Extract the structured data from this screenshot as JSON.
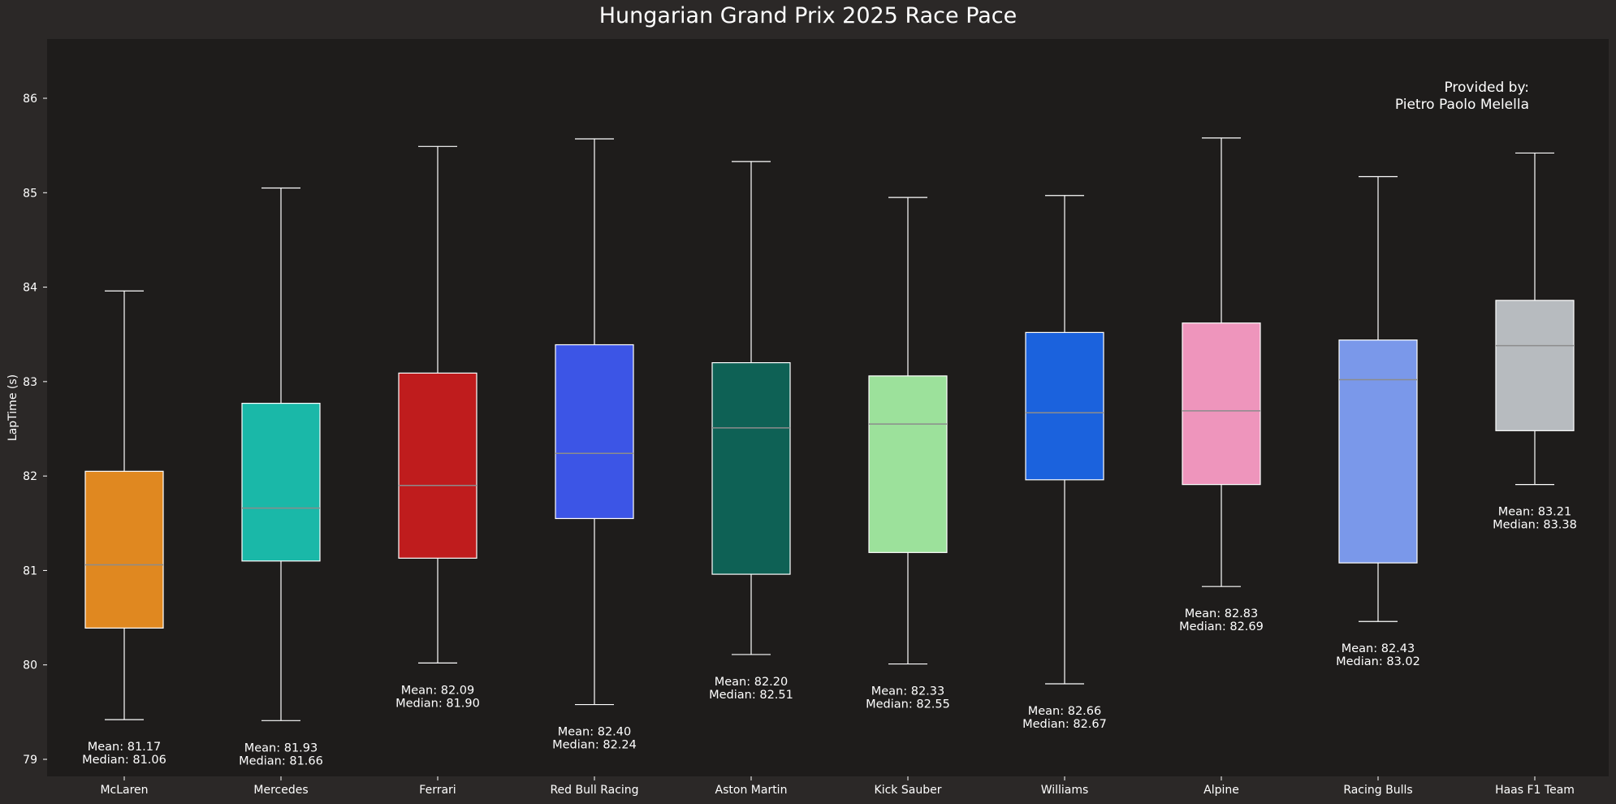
{
  "chart_data": {
    "type": "box",
    "title": "Hungarian Grand Prix 2025 Race Pace",
    "ylabel": "LapTime (s)",
    "xlabel": "",
    "ylim": [
      78.8,
      86.65
    ],
    "yticks": [
      79,
      80,
      81,
      82,
      83,
      84,
      85,
      86
    ],
    "grid": false,
    "credit": [
      "Provided by:",
      "Pietro Paolo Melella"
    ],
    "colors": {
      "figure_bg": "#2b2827",
      "plot_bg": "#1e1c1b",
      "text": "#ffffff",
      "whisker": "#ffffff",
      "median_line": "#8c8c8c"
    },
    "teams": [
      {
        "name": "McLaren",
        "color": "#e08820",
        "whisker_low": 79.42,
        "q1": 80.39,
        "median": 81.06,
        "q3": 82.05,
        "whisker_high": 83.96,
        "mean_text": "Mean: 81.17",
        "median_text": "Median: 81.06"
      },
      {
        "name": "Mercedes",
        "color": "#1ab8a8",
        "whisker_low": 79.41,
        "q1": 81.1,
        "median": 81.66,
        "q3": 82.77,
        "whisker_high": 85.05,
        "mean_text": "Mean: 81.93",
        "median_text": "Median: 81.66"
      },
      {
        "name": "Ferrari",
        "color": "#bf1c1d",
        "whisker_low": 80.02,
        "q1": 81.13,
        "median": 81.9,
        "q3": 83.09,
        "whisker_high": 85.49,
        "mean_text": "Mean: 82.09",
        "median_text": "Median: 81.90"
      },
      {
        "name": "Red Bull Racing",
        "color": "#3c55e6",
        "whisker_low": 79.58,
        "q1": 81.55,
        "median": 82.24,
        "q3": 83.39,
        "whisker_high": 85.57,
        "mean_text": "Mean: 82.40",
        "median_text": "Median: 82.24"
      },
      {
        "name": "Aston Martin",
        "color": "#0e6155",
        "whisker_low": 80.11,
        "q1": 80.96,
        "median": 82.51,
        "q3": 83.2,
        "whisker_high": 85.33,
        "mean_text": "Mean: 82.20",
        "median_text": "Median: 82.51"
      },
      {
        "name": "Kick Sauber",
        "color": "#9ce19b",
        "whisker_low": 80.01,
        "q1": 81.19,
        "median": 82.55,
        "q3": 83.06,
        "whisker_high": 84.95,
        "mean_text": "Mean: 82.33",
        "median_text": "Median: 82.55"
      },
      {
        "name": "Williams",
        "color": "#1b62dd",
        "whisker_low": 79.8,
        "q1": 81.96,
        "median": 82.67,
        "q3": 83.52,
        "whisker_high": 84.97,
        "mean_text": "Mean: 82.66",
        "median_text": "Median: 82.67"
      },
      {
        "name": "Alpine",
        "color": "#ee95bc",
        "whisker_low": 80.83,
        "q1": 81.91,
        "median": 82.69,
        "q3": 83.62,
        "whisker_high": 85.58,
        "mean_text": "Mean: 82.83",
        "median_text": "Median: 82.69"
      },
      {
        "name": "Racing Bulls",
        "color": "#7a98ea",
        "whisker_low": 80.46,
        "q1": 81.08,
        "median": 83.02,
        "q3": 83.44,
        "whisker_high": 85.17,
        "mean_text": "Mean: 82.43",
        "median_text": "Median: 83.02"
      },
      {
        "name": "Haas F1 Team",
        "color": "#b7bbbf",
        "whisker_low": 81.91,
        "q1": 82.48,
        "median": 83.38,
        "q3": 83.86,
        "whisker_high": 85.42,
        "mean_text": "Mean: 83.21",
        "median_text": "Median: 83.38"
      }
    ]
  }
}
